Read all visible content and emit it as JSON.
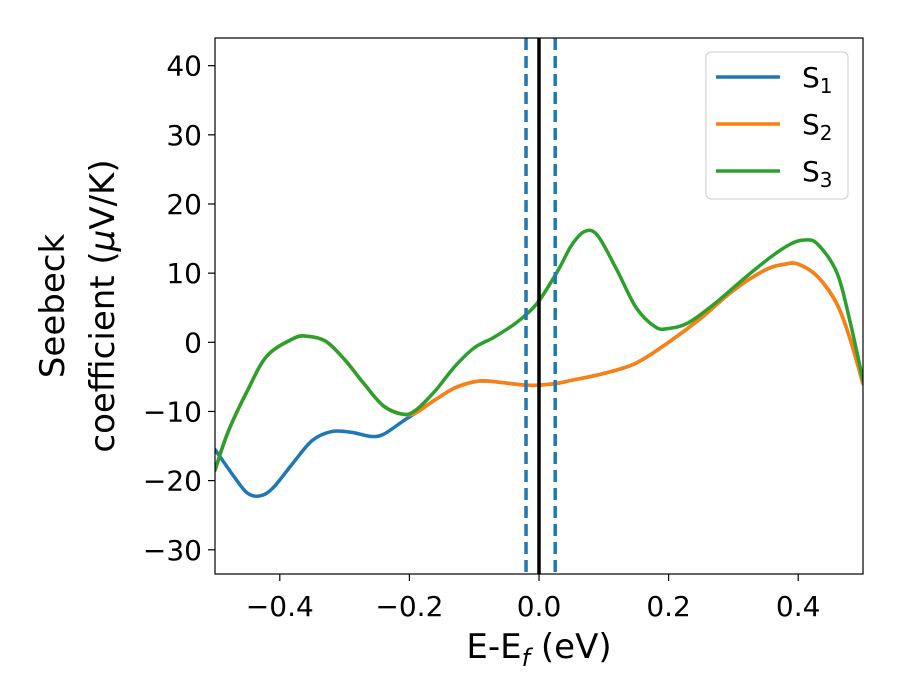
{
  "chart_data": {
    "type": "line",
    "xlabel": {
      "main": "E-E",
      "sub": "f",
      "unit": " (eV)"
    },
    "ylabel": {
      "line1": "Seebeck",
      "line2": "coefficient  (",
      "mu": "μ",
      "unit": "V/K)"
    },
    "xlim": [
      -0.5,
      0.5
    ],
    "ylim": [
      -33.5,
      44
    ],
    "xticks": [
      -0.4,
      -0.2,
      0.0,
      0.2,
      0.4
    ],
    "xtick_labels": [
      "−0.4",
      "−0.2",
      "0.0",
      "0.2",
      "0.4"
    ],
    "yticks": [
      -30,
      -20,
      -10,
      0,
      10,
      20,
      30,
      40
    ],
    "ytick_labels": [
      "−30",
      "−20",
      "−10",
      "0",
      "10",
      "20",
      "30",
      "40"
    ],
    "grid": false,
    "legend_position": "top-right",
    "series": [
      {
        "name": "S",
        "sub": "1",
        "color": "#1f77b4",
        "points": [
          [
            -0.5,
            -15.5
          ],
          [
            -0.47,
            -19.5
          ],
          [
            -0.45,
            -21.8
          ],
          [
            -0.43,
            -22.2
          ],
          [
            -0.41,
            -21
          ],
          [
            -0.38,
            -17.5
          ],
          [
            -0.35,
            -14.2
          ],
          [
            -0.32,
            -12.9
          ],
          [
            -0.29,
            -13
          ],
          [
            -0.26,
            -13.6
          ],
          [
            -0.24,
            -13.3
          ],
          [
            -0.21,
            -11.4
          ],
          [
            -0.19,
            -10.2
          ],
          [
            -0.16,
            -8.3
          ],
          [
            -0.13,
            -6.6
          ],
          [
            -0.1,
            -5.7
          ],
          [
            -0.08,
            -5.6
          ],
          [
            -0.05,
            -5.9
          ],
          [
            -0.02,
            -6.2
          ],
          [
            0.0,
            -6.2
          ],
          [
            0.03,
            -5.9
          ],
          [
            0.05,
            -5.5
          ],
          [
            0.1,
            -4.5
          ],
          [
            0.15,
            -3
          ],
          [
            0.2,
            0
          ],
          [
            0.25,
            3.5
          ],
          [
            0.3,
            7.5
          ],
          [
            0.35,
            10.5
          ],
          [
            0.38,
            11.3
          ],
          [
            0.4,
            11.3
          ],
          [
            0.43,
            9.5
          ],
          [
            0.46,
            5.5
          ],
          [
            0.48,
            0.5
          ],
          [
            0.5,
            -6
          ]
        ]
      },
      {
        "name": "S",
        "sub": "2",
        "color": "#ff7f0e",
        "points": [
          [
            -0.5,
            -18.5
          ],
          [
            -0.48,
            -13
          ],
          [
            -0.45,
            -7
          ],
          [
            -0.42,
            -2
          ],
          [
            -0.38,
            0.5
          ],
          [
            -0.36,
            0.9
          ],
          [
            -0.33,
            0.2
          ],
          [
            -0.3,
            -2.5
          ],
          [
            -0.27,
            -6
          ],
          [
            -0.24,
            -9.2
          ],
          [
            -0.21,
            -10.4
          ],
          [
            -0.19,
            -10.2
          ],
          [
            -0.16,
            -8.3
          ],
          [
            -0.13,
            -6.6
          ],
          [
            -0.1,
            -5.7
          ],
          [
            -0.08,
            -5.6
          ],
          [
            -0.05,
            -5.9
          ],
          [
            -0.02,
            -6.2
          ],
          [
            0.0,
            -6.2
          ],
          [
            0.03,
            -5.9
          ],
          [
            0.05,
            -5.5
          ],
          [
            0.1,
            -4.5
          ],
          [
            0.15,
            -3
          ],
          [
            0.2,
            0
          ],
          [
            0.25,
            3.5
          ],
          [
            0.3,
            7.5
          ],
          [
            0.35,
            10.5
          ],
          [
            0.38,
            11.3
          ],
          [
            0.4,
            11.3
          ],
          [
            0.43,
            9.5
          ],
          [
            0.46,
            5.5
          ],
          [
            0.48,
            0.5
          ],
          [
            0.5,
            -6
          ]
        ]
      },
      {
        "name": "S",
        "sub": "3",
        "color": "#2ca02c",
        "points": [
          [
            -0.5,
            -18.5
          ],
          [
            -0.48,
            -13
          ],
          [
            -0.45,
            -7
          ],
          [
            -0.42,
            -2
          ],
          [
            -0.38,
            0.5
          ],
          [
            -0.36,
            0.9
          ],
          [
            -0.33,
            0.2
          ],
          [
            -0.3,
            -2.5
          ],
          [
            -0.27,
            -6
          ],
          [
            -0.24,
            -9.2
          ],
          [
            -0.21,
            -10.4
          ],
          [
            -0.19,
            -9.8
          ],
          [
            -0.16,
            -7
          ],
          [
            -0.13,
            -3.5
          ],
          [
            -0.1,
            -0.8
          ],
          [
            -0.07,
            0.7
          ],
          [
            -0.04,
            2.5
          ],
          [
            -0.02,
            4
          ],
          [
            0.0,
            6
          ],
          [
            0.03,
            10.5
          ],
          [
            0.05,
            14
          ],
          [
            0.07,
            16
          ],
          [
            0.09,
            15.5
          ],
          [
            0.12,
            10.5
          ],
          [
            0.15,
            5
          ],
          [
            0.18,
            2.2
          ],
          [
            0.2,
            2
          ],
          [
            0.23,
            2.8
          ],
          [
            0.27,
            5.5
          ],
          [
            0.32,
            9.5
          ],
          [
            0.36,
            12.5
          ],
          [
            0.39,
            14.3
          ],
          [
            0.41,
            14.8
          ],
          [
            0.43,
            14.2
          ],
          [
            0.46,
            10
          ],
          [
            0.48,
            3
          ],
          [
            0.5,
            -5.5
          ]
        ]
      }
    ],
    "vlines": [
      {
        "x": -0.02,
        "color": "#1f77b4",
        "style": "dashed"
      },
      {
        "x": 0.0,
        "color": "#000000",
        "style": "solid"
      },
      {
        "x": 0.025,
        "color": "#1f77b4",
        "style": "dashed"
      }
    ]
  }
}
